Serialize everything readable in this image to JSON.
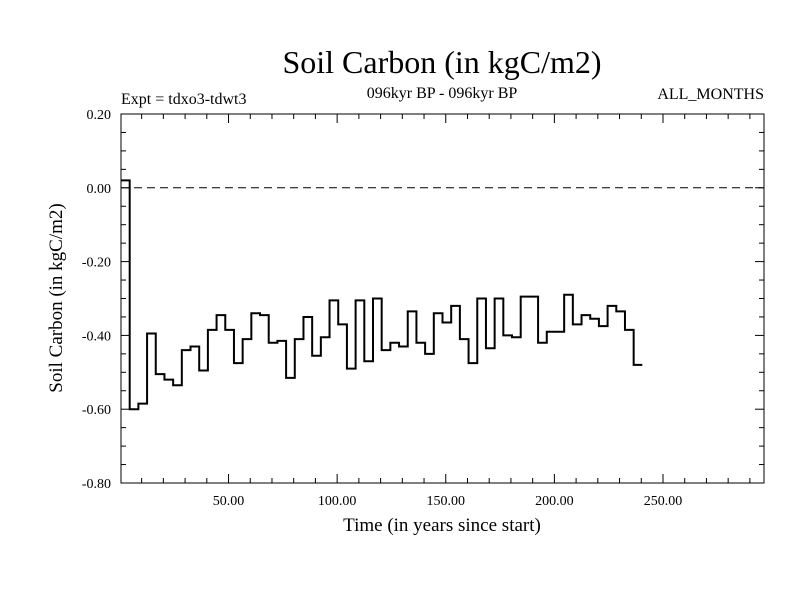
{
  "chart_data": {
    "type": "line",
    "title": "Soil Carbon (in kgC/m2)",
    "header_left": "Expt = tdxo3-tdwt3",
    "header_center": "096kyr BP - 096kyr BP",
    "header_right": "ALL_MONTHS",
    "xlabel": "Time (in years since start)",
    "ylabel": "Soil Carbon (in kgC/m2)",
    "xlim": [
      0.5,
      296.5
    ],
    "ylim": [
      -0.8,
      0.2
    ],
    "xticks": [
      50,
      100,
      150,
      200,
      250
    ],
    "xtick_labels": [
      "50.00",
      "100.00",
      "150.00",
      "200.00",
      "250.00"
    ],
    "yticks": [
      0.2,
      0.0,
      -0.2,
      -0.4,
      -0.6,
      -0.8
    ],
    "ytick_labels": [
      "0.20",
      "0.00",
      "-0.20",
      "-0.40",
      "-0.60",
      "-0.80"
    ],
    "reference_line": 0.0,
    "step": 4,
    "series": [
      {
        "x_start": 0.5,
        "values": [
          0.02,
          -0.6,
          -0.585,
          -0.395,
          -0.505,
          -0.52,
          -0.535,
          -0.44,
          -0.43,
          -0.495,
          -0.385,
          -0.345,
          -0.385,
          -0.475,
          -0.41,
          -0.34,
          -0.345,
          -0.42,
          -0.415,
          -0.515,
          -0.41,
          -0.35,
          -0.455,
          -0.405,
          -0.305,
          -0.37,
          -0.49,
          -0.305,
          -0.47,
          -0.3,
          -0.44,
          -0.42,
          -0.43,
          -0.335,
          -0.42,
          -0.45,
          -0.34,
          -0.365,
          -0.32,
          -0.41,
          -0.475,
          -0.3,
          -0.435,
          -0.3,
          -0.4,
          -0.405,
          -0.295,
          -0.295,
          -0.42,
          -0.39,
          -0.39,
          -0.29,
          -0.37,
          -0.345,
          -0.355,
          -0.375,
          -0.32,
          -0.335,
          -0.385,
          -0.48
        ]
      }
    ]
  }
}
